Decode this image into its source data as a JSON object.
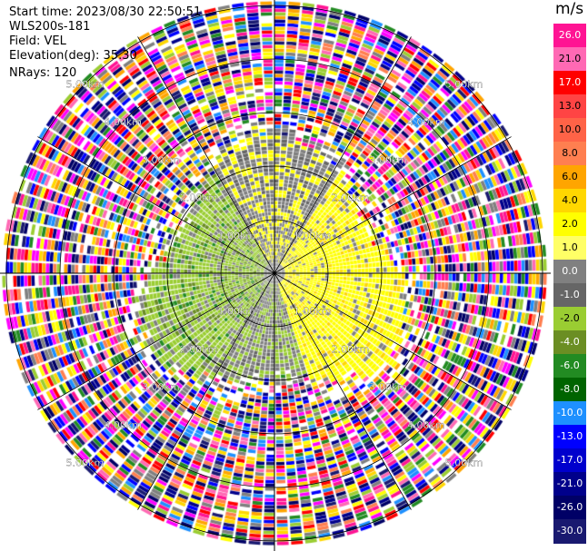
{
  "header": {
    "start_time": "Start time: 2023/08/30 22:50:51",
    "station": "WLS200s-181",
    "field": "Field: VEL",
    "elevation": "Elevation(deg): 35.30",
    "nrays": "NRays: 120"
  },
  "colorbar": {
    "unit": "m/s",
    "ticks": [
      "26.0",
      "21.0",
      "17.0",
      "13.0",
      "10.0",
      "8.0",
      "6.0",
      "4.0",
      "2.0",
      "1.0",
      "0.0",
      "-1.0",
      "-2.0",
      "-4.0",
      "-6.0",
      "-8.0",
      "-10.0",
      "-13.0",
      "-17.0",
      "-21.0",
      "-26.0",
      "-30.0"
    ],
    "colors": [
      "#ff1493",
      "#ff69b4",
      "#ff0000",
      "#ff4444",
      "#ff6347",
      "#ff7f50",
      "#ffa500",
      "#ffd700",
      "#ffff00",
      "#ffff66",
      "#808080",
      "#666666",
      "#9acd32",
      "#6b8e23",
      "#228b22",
      "#006400",
      "#1e90ff",
      "#0000ff",
      "#0000cd",
      "#00008b",
      "#000066",
      "#191970"
    ]
  },
  "range_labels": {
    "near": [
      "1.00km",
      "1.00km",
      "1.00km",
      "1.00km"
    ],
    "r2": [
      "2.00km",
      "2.00km",
      "2.00km",
      "2.00km"
    ],
    "r3": [
      "3.00km",
      "3.00km",
      "3.00km",
      "3.00km"
    ],
    "r4": [
      "4.00km",
      "4.00km",
      "4.00km",
      "4.00km"
    ],
    "r5": [
      "5.00km",
      "5.00km",
      "5.00km",
      "5.00km"
    ]
  },
  "chart_data": {
    "type": "heatmap",
    "projection": "polar PPI",
    "field": "VEL",
    "units": "m/s",
    "nrays": 120,
    "range_rings_km": [
      1,
      2,
      3,
      4,
      5
    ],
    "color_levels": [
      -30,
      -26,
      -21,
      -17,
      -13,
      -10,
      -8,
      -6,
      -4,
      -2,
      -1,
      0,
      1,
      2,
      4,
      6,
      8,
      10,
      13,
      17,
      21,
      26
    ],
    "regions": [
      {
        "sector": "east",
        "range_km": [
          0,
          2.2
        ],
        "value": 2.0
      },
      {
        "sector": "west/south-west",
        "range_km": [
          0,
          2.3
        ],
        "value": -2.0
      },
      {
        "sector": "south",
        "range_km": [
          0,
          2.3
        ],
        "value": -1.0
      },
      {
        "sector": "all",
        "range_km": [
          2.5,
          5.0
        ],
        "value": "noise"
      }
    ]
  }
}
